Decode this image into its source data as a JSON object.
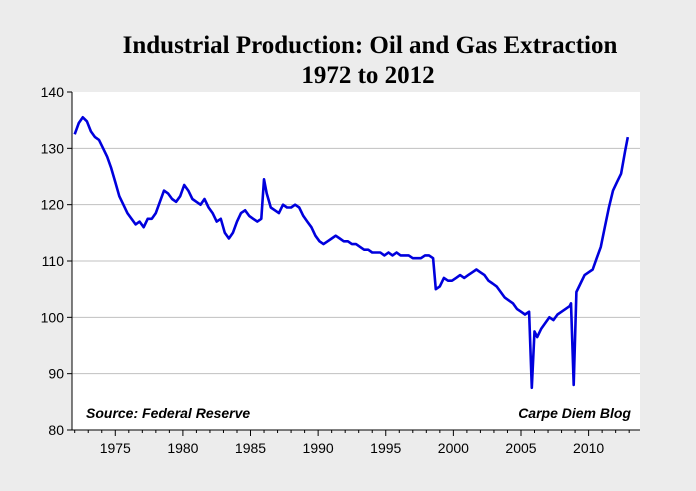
{
  "chart_data": {
    "type": "line",
    "title": "Industrial Production: Oil and Gas Extraction",
    "subtitle": "1972 to 2012",
    "xlabel": "",
    "ylabel": "",
    "xlim": [
      1971.8,
      2013.8
    ],
    "ylim": [
      80,
      140
    ],
    "y_ticks": [
      "80",
      "90",
      "100",
      "110",
      "120",
      "130",
      "140"
    ],
    "x_ticks": [
      "1975",
      "1980",
      "1985",
      "1990",
      "1995",
      "2000",
      "2005",
      "2010"
    ],
    "grid": true,
    "annotations": {
      "source": "Source: Federal Reserve",
      "blog": "Carpe Diem Blog"
    },
    "colors": {
      "line": "#0000dd",
      "plot_bg": "#ffffff",
      "page_bg": "#ececec",
      "grid": "#c0c0c0"
    },
    "series": [
      {
        "x": [
          1972.0,
          1972.3,
          1972.6,
          1972.9,
          1973.2,
          1973.5,
          1973.8,
          1974.1,
          1974.4,
          1974.7,
          1975.0,
          1975.3,
          1975.6,
          1975.9,
          1976.2,
          1976.5,
          1976.8,
          1977.1,
          1977.4,
          1977.7,
          1978.0,
          1978.3,
          1978.6,
          1978.9,
          1979.2,
          1979.5,
          1979.8,
          1980.1,
          1980.4,
          1980.7,
          1981.0,
          1981.3,
          1981.6,
          1981.9,
          1982.2,
          1982.5,
          1982.8,
          1983.1,
          1983.4,
          1983.7,
          1984.0,
          1984.3,
          1984.6,
          1984.9,
          1985.2,
          1985.5,
          1985.8,
          1986.0,
          1986.2,
          1986.5,
          1986.8,
          1987.1,
          1987.4,
          1987.7,
          1988.0,
          1988.3,
          1988.6,
          1988.9,
          1989.2,
          1989.5,
          1989.8,
          1990.1,
          1990.4,
          1990.7,
          1991.0,
          1991.3,
          1991.6,
          1991.9,
          1992.2,
          1992.5,
          1992.8,
          1993.1,
          1993.4,
          1993.7,
          1994.0,
          1994.3,
          1994.6,
          1994.9,
          1995.2,
          1995.5,
          1995.8,
          1996.1,
          1996.4,
          1996.7,
          1997.0,
          1997.3,
          1997.6,
          1997.9,
          1998.2,
          1998.5,
          1998.7,
          1999.0,
          1999.3,
          1999.6,
          1999.9,
          2000.2,
          2000.5,
          2000.8,
          2001.1,
          2001.4,
          2001.7,
          2002.0,
          2002.3,
          2002.6,
          2002.9,
          2003.2,
          2003.5,
          2003.8,
          2004.1,
          2004.4,
          2004.7,
          2005.0,
          2005.3,
          2005.6,
          2005.8,
          2006.0,
          2006.2,
          2006.5,
          2006.8,
          2007.1,
          2007.4,
          2007.7,
          2008.0,
          2008.3,
          2008.6,
          2008.7,
          2008.9,
          2009.1,
          2009.4,
          2009.7,
          2010.0,
          2010.3,
          2010.6,
          2010.9,
          2011.2,
          2011.5,
          2011.8,
          2012.1,
          2012.4,
          2012.7,
          2012.9
        ],
        "y": [
          132.5,
          134.5,
          135.5,
          134.8,
          133.0,
          132.0,
          131.5,
          130.0,
          128.5,
          126.5,
          124.0,
          121.5,
          120.0,
          118.5,
          117.5,
          116.5,
          117.0,
          116.0,
          117.5,
          117.5,
          118.5,
          120.5,
          122.5,
          122.0,
          121.0,
          120.5,
          121.5,
          123.5,
          122.5,
          121.0,
          120.5,
          120.0,
          121.0,
          119.5,
          118.5,
          117.0,
          117.5,
          115.0,
          114.0,
          115.0,
          117.0,
          118.5,
          119.0,
          118.0,
          117.5,
          117.0,
          117.5,
          124.5,
          122.0,
          119.5,
          119.0,
          118.5,
          120.0,
          119.5,
          119.5,
          120.0,
          119.5,
          118.0,
          117.0,
          116.0,
          114.5,
          113.5,
          113.0,
          113.5,
          114.0,
          114.5,
          114.0,
          113.5,
          113.5,
          113.0,
          113.0,
          112.5,
          112.0,
          112.0,
          111.5,
          111.5,
          111.5,
          111.0,
          111.5,
          111.0,
          111.5,
          111.0,
          111.0,
          111.0,
          110.5,
          110.5,
          110.5,
          111.0,
          111.0,
          110.5,
          105.0,
          105.5,
          107.0,
          106.5,
          106.5,
          107.0,
          107.5,
          107.0,
          107.5,
          108.0,
          108.5,
          108.0,
          107.5,
          106.5,
          106.0,
          105.5,
          104.5,
          103.5,
          103.0,
          102.5,
          101.5,
          101.0,
          100.5,
          101.0,
          87.5,
          97.5,
          96.5,
          98.0,
          99.0,
          100.0,
          99.5,
          100.5,
          101.0,
          101.5,
          102.0,
          102.5,
          88.0,
          104.5,
          106.0,
          107.5,
          108.0,
          108.5,
          110.5,
          112.5,
          116.0,
          119.5,
          122.5,
          124.0,
          125.5,
          129.5,
          132.0
        ]
      }
    ]
  }
}
